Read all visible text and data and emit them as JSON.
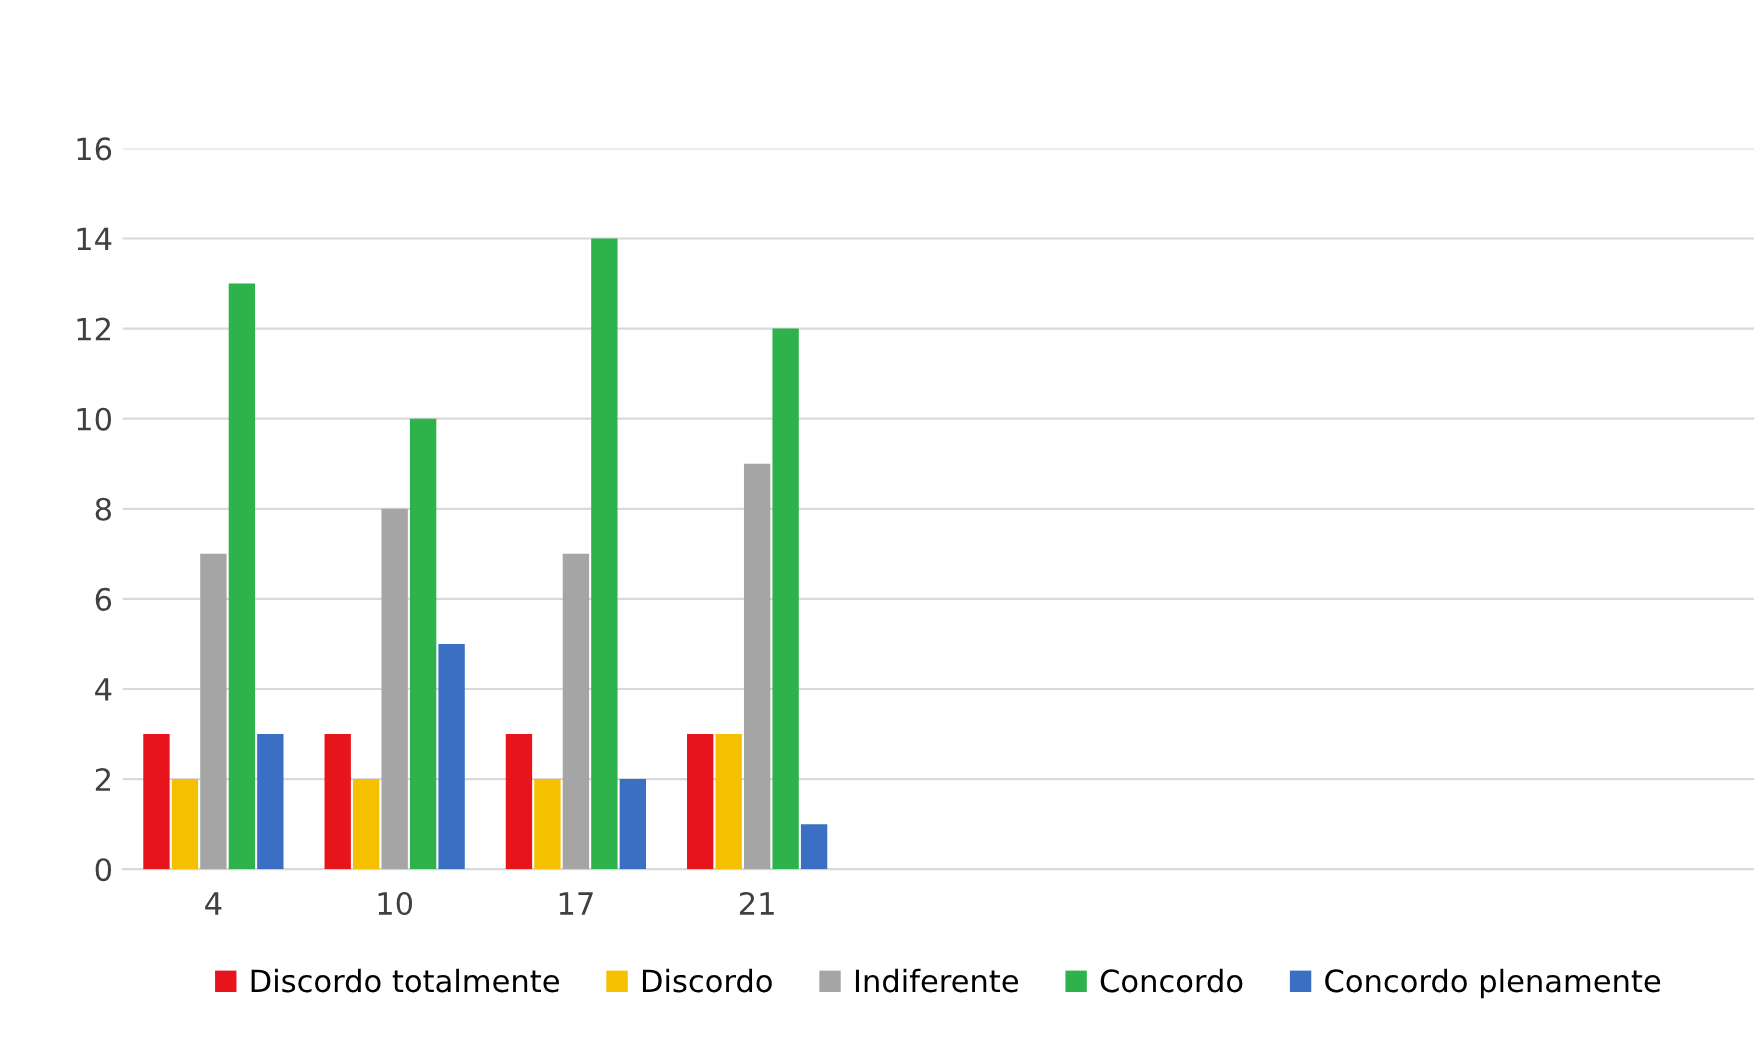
{
  "chart_data": {
    "type": "bar",
    "categories": [
      "4",
      "10",
      "17",
      "21",
      null,
      null,
      null,
      null,
      null
    ],
    "series": [
      {
        "name": "Discordo totalmente",
        "color": "#e8141b",
        "values": [
          3,
          3,
          3,
          3,
          null,
          null,
          null,
          null,
          null
        ]
      },
      {
        "name": "Discordo",
        "color": "#f5c000",
        "values": [
          2,
          2,
          2,
          3,
          null,
          null,
          null,
          null,
          null
        ]
      },
      {
        "name": "Indiferente",
        "color": "#a5a5a5",
        "values": [
          7,
          8,
          7,
          9,
          null,
          null,
          null,
          null,
          null
        ]
      },
      {
        "name": "Concordo",
        "color": "#2eb24b",
        "values": [
          13,
          10,
          14,
          12,
          null,
          null,
          null,
          null,
          null
        ]
      },
      {
        "name": "Concordo plenamente",
        "color": "#3a6fc4",
        "values": [
          3,
          5,
          2,
          1,
          null,
          null,
          null,
          null,
          null
        ]
      }
    ],
    "ylim": [
      0,
      16
    ],
    "yticks": [
      0,
      2,
      4,
      6,
      8,
      10,
      12,
      14,
      16
    ],
    "grid": "y",
    "legend": "bottom"
  }
}
